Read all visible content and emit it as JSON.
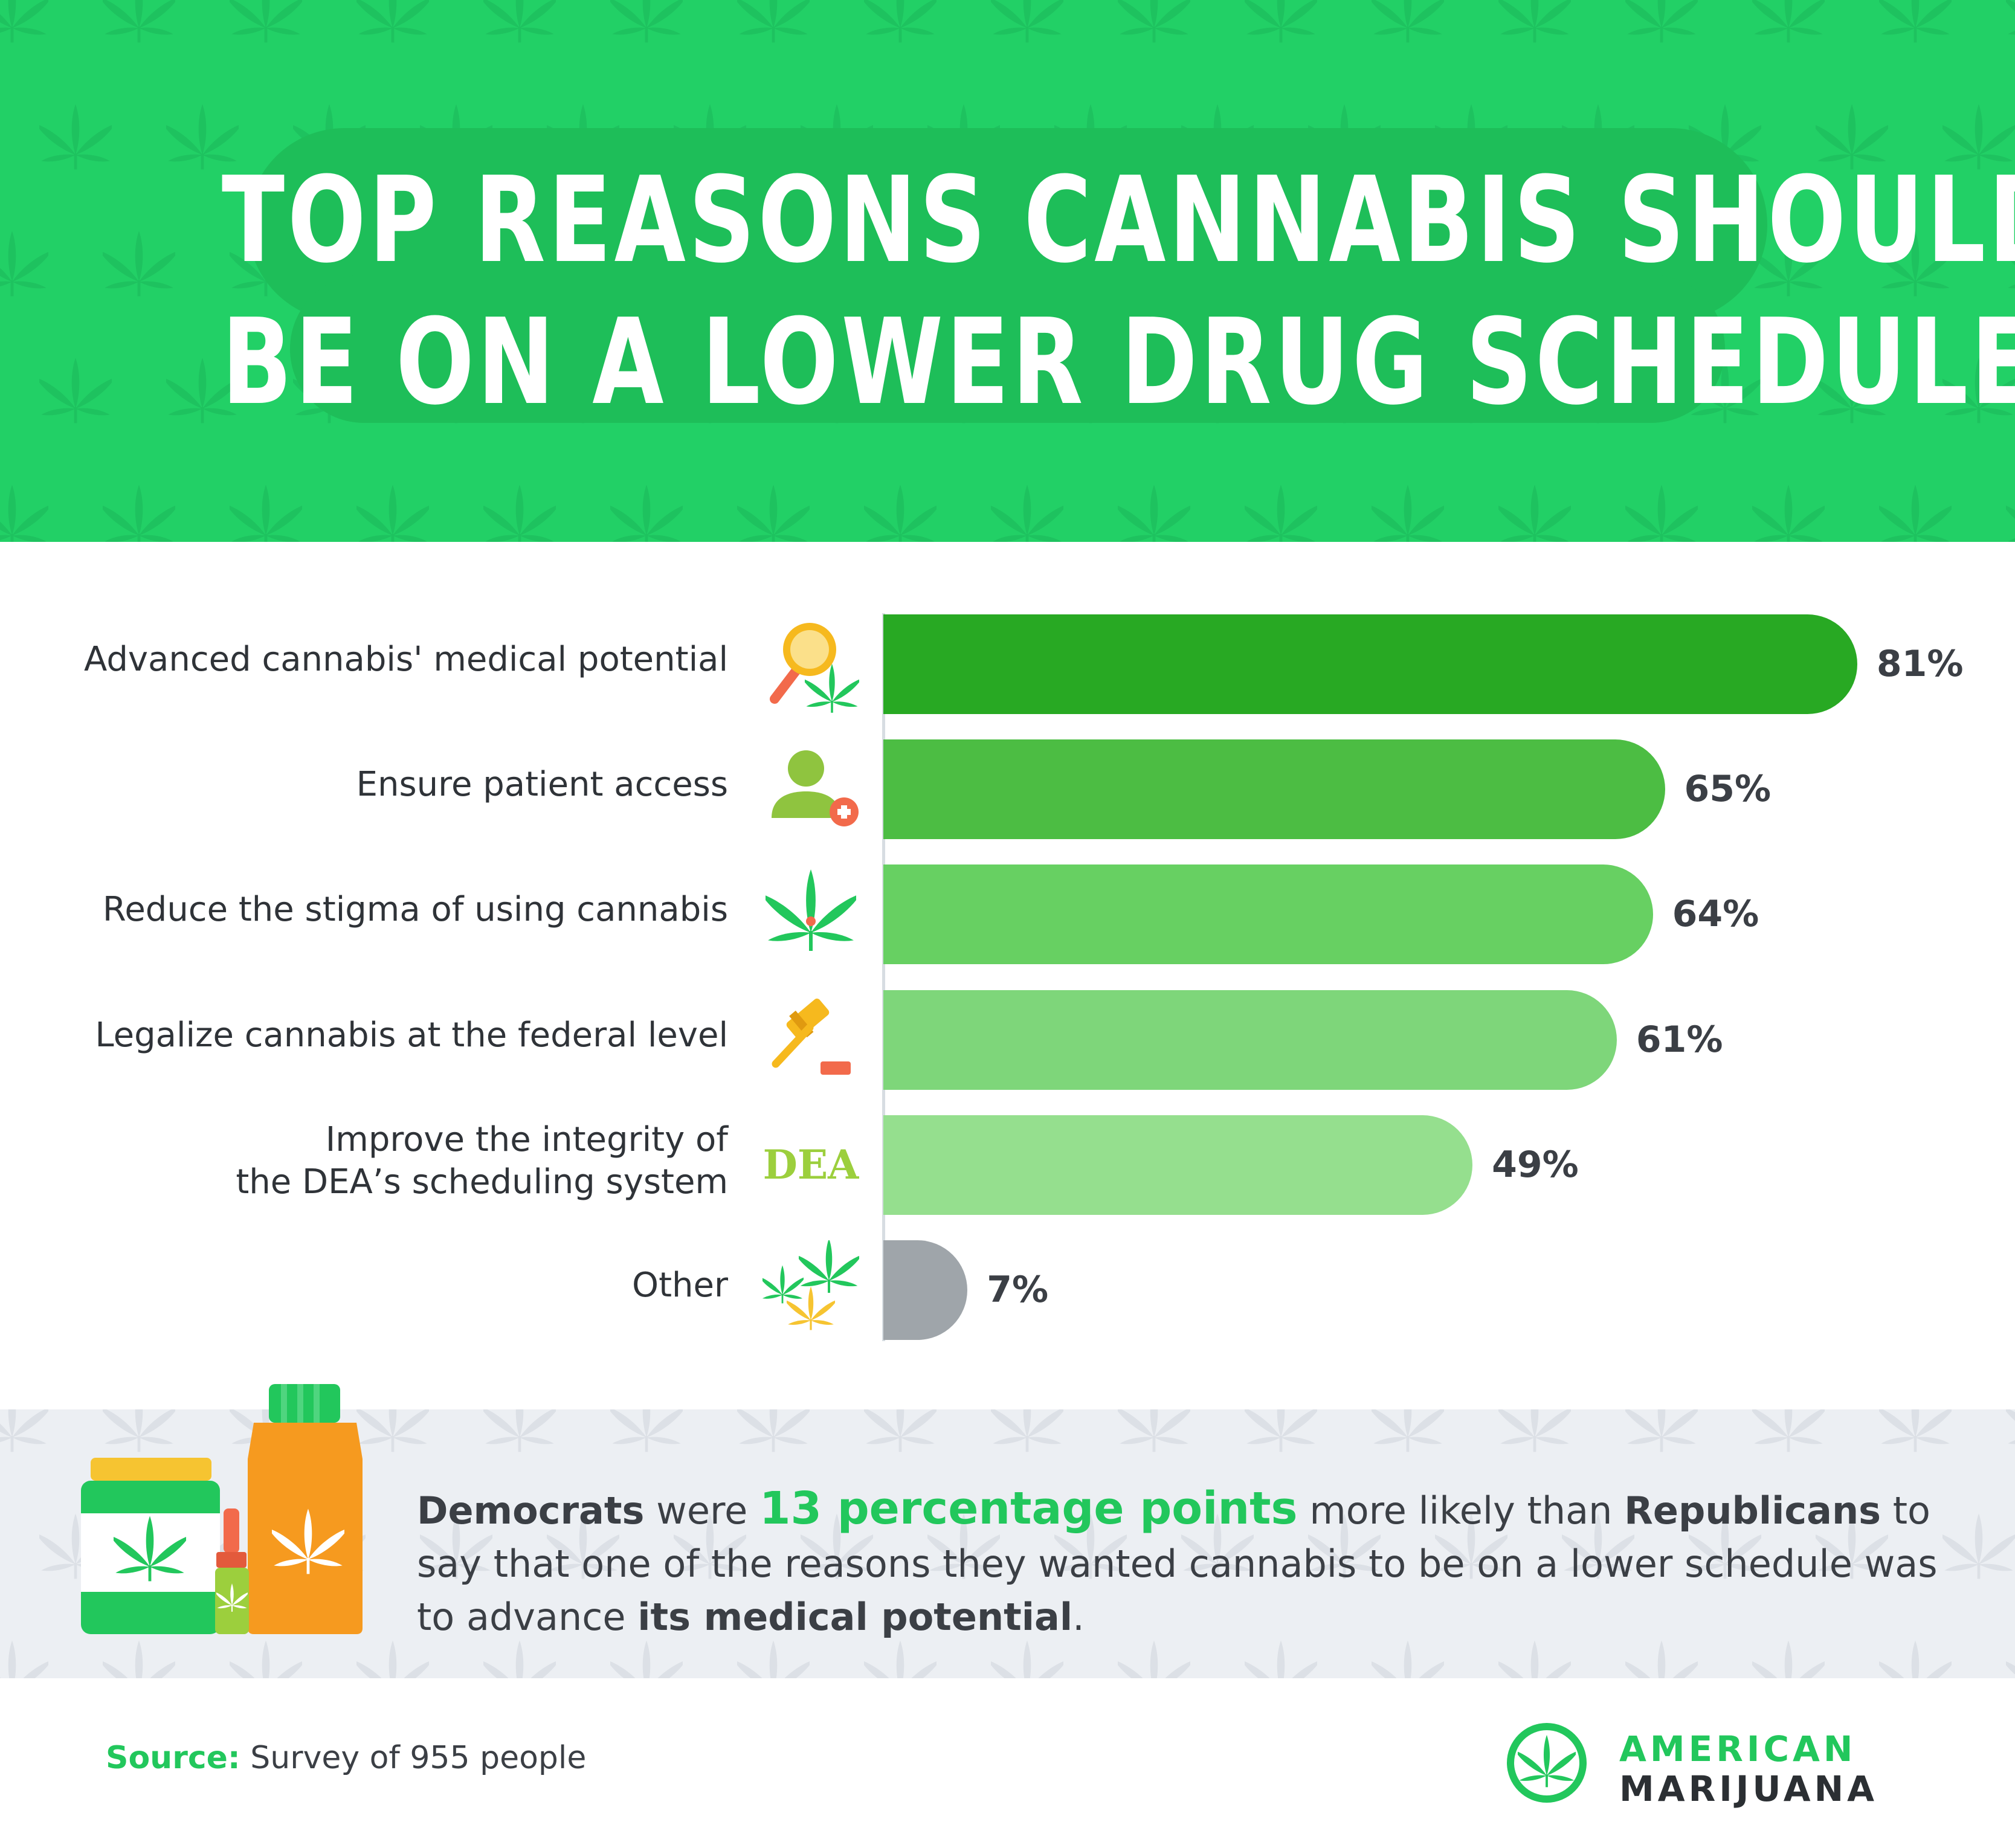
{
  "title": {
    "line1": "TOP REASONS CANNABIS SHOULD",
    "line2": "BE ON A LOWER DRUG SCHEDULE"
  },
  "chart_data": {
    "type": "bar",
    "orientation": "horizontal",
    "unit": "%",
    "categories": [
      "Advanced cannabis' medical potential",
      "Ensure patient access",
      "Reduce the stigma of using cannabis",
      "Legalize cannabis at the federal level",
      "Improve the integrity of the DEA’s scheduling system",
      "Other"
    ],
    "category_lines": [
      [
        "Advanced cannabis' medical potential"
      ],
      [
        "Ensure patient access"
      ],
      [
        "Reduce the stigma of using cannabis"
      ],
      [
        "Legalize cannabis at the federal level"
      ],
      [
        "Improve the integrity of",
        "the DEA’s scheduling system"
      ],
      [
        "Other"
      ]
    ],
    "values": [
      81,
      65,
      64,
      61,
      49,
      7
    ],
    "value_labels": [
      "81%",
      "65%",
      "64%",
      "61%",
      "49%",
      "7%"
    ],
    "xlim": [
      0,
      100
    ],
    "colors": [
      "#28a923",
      "#4cbd43",
      "#67d062",
      "#7ed67a",
      "#95df8e",
      "#9fa5aa"
    ],
    "icons": [
      "magnifier-leaf-icon",
      "patient-plus-icon",
      "cannabis-leaf-icon",
      "gavel-icon",
      "dea-text-icon",
      "leaf-cluster-icon"
    ],
    "icon_dea_text": "DEA"
  },
  "note": {
    "part1": "Democrats",
    "part2": " were ",
    "part3": "13 percentage points",
    "part4": " more likely than ",
    "part5": "Republicans",
    "part6": " to say that one of the reasons they wanted cannabis to be on a lower schedule was to advance ",
    "part7": "its medical potential",
    "part8": "."
  },
  "source": {
    "label": "Source:",
    "text": " Survey of 955 people"
  },
  "logo": {
    "line1": "AMERICAN",
    "line2": "MARIJUANA"
  },
  "colors": {
    "header_green": "#22d066",
    "accent_green": "#22c75c",
    "text_dark": "#3b3f45",
    "note_bg": "#eceff3"
  }
}
